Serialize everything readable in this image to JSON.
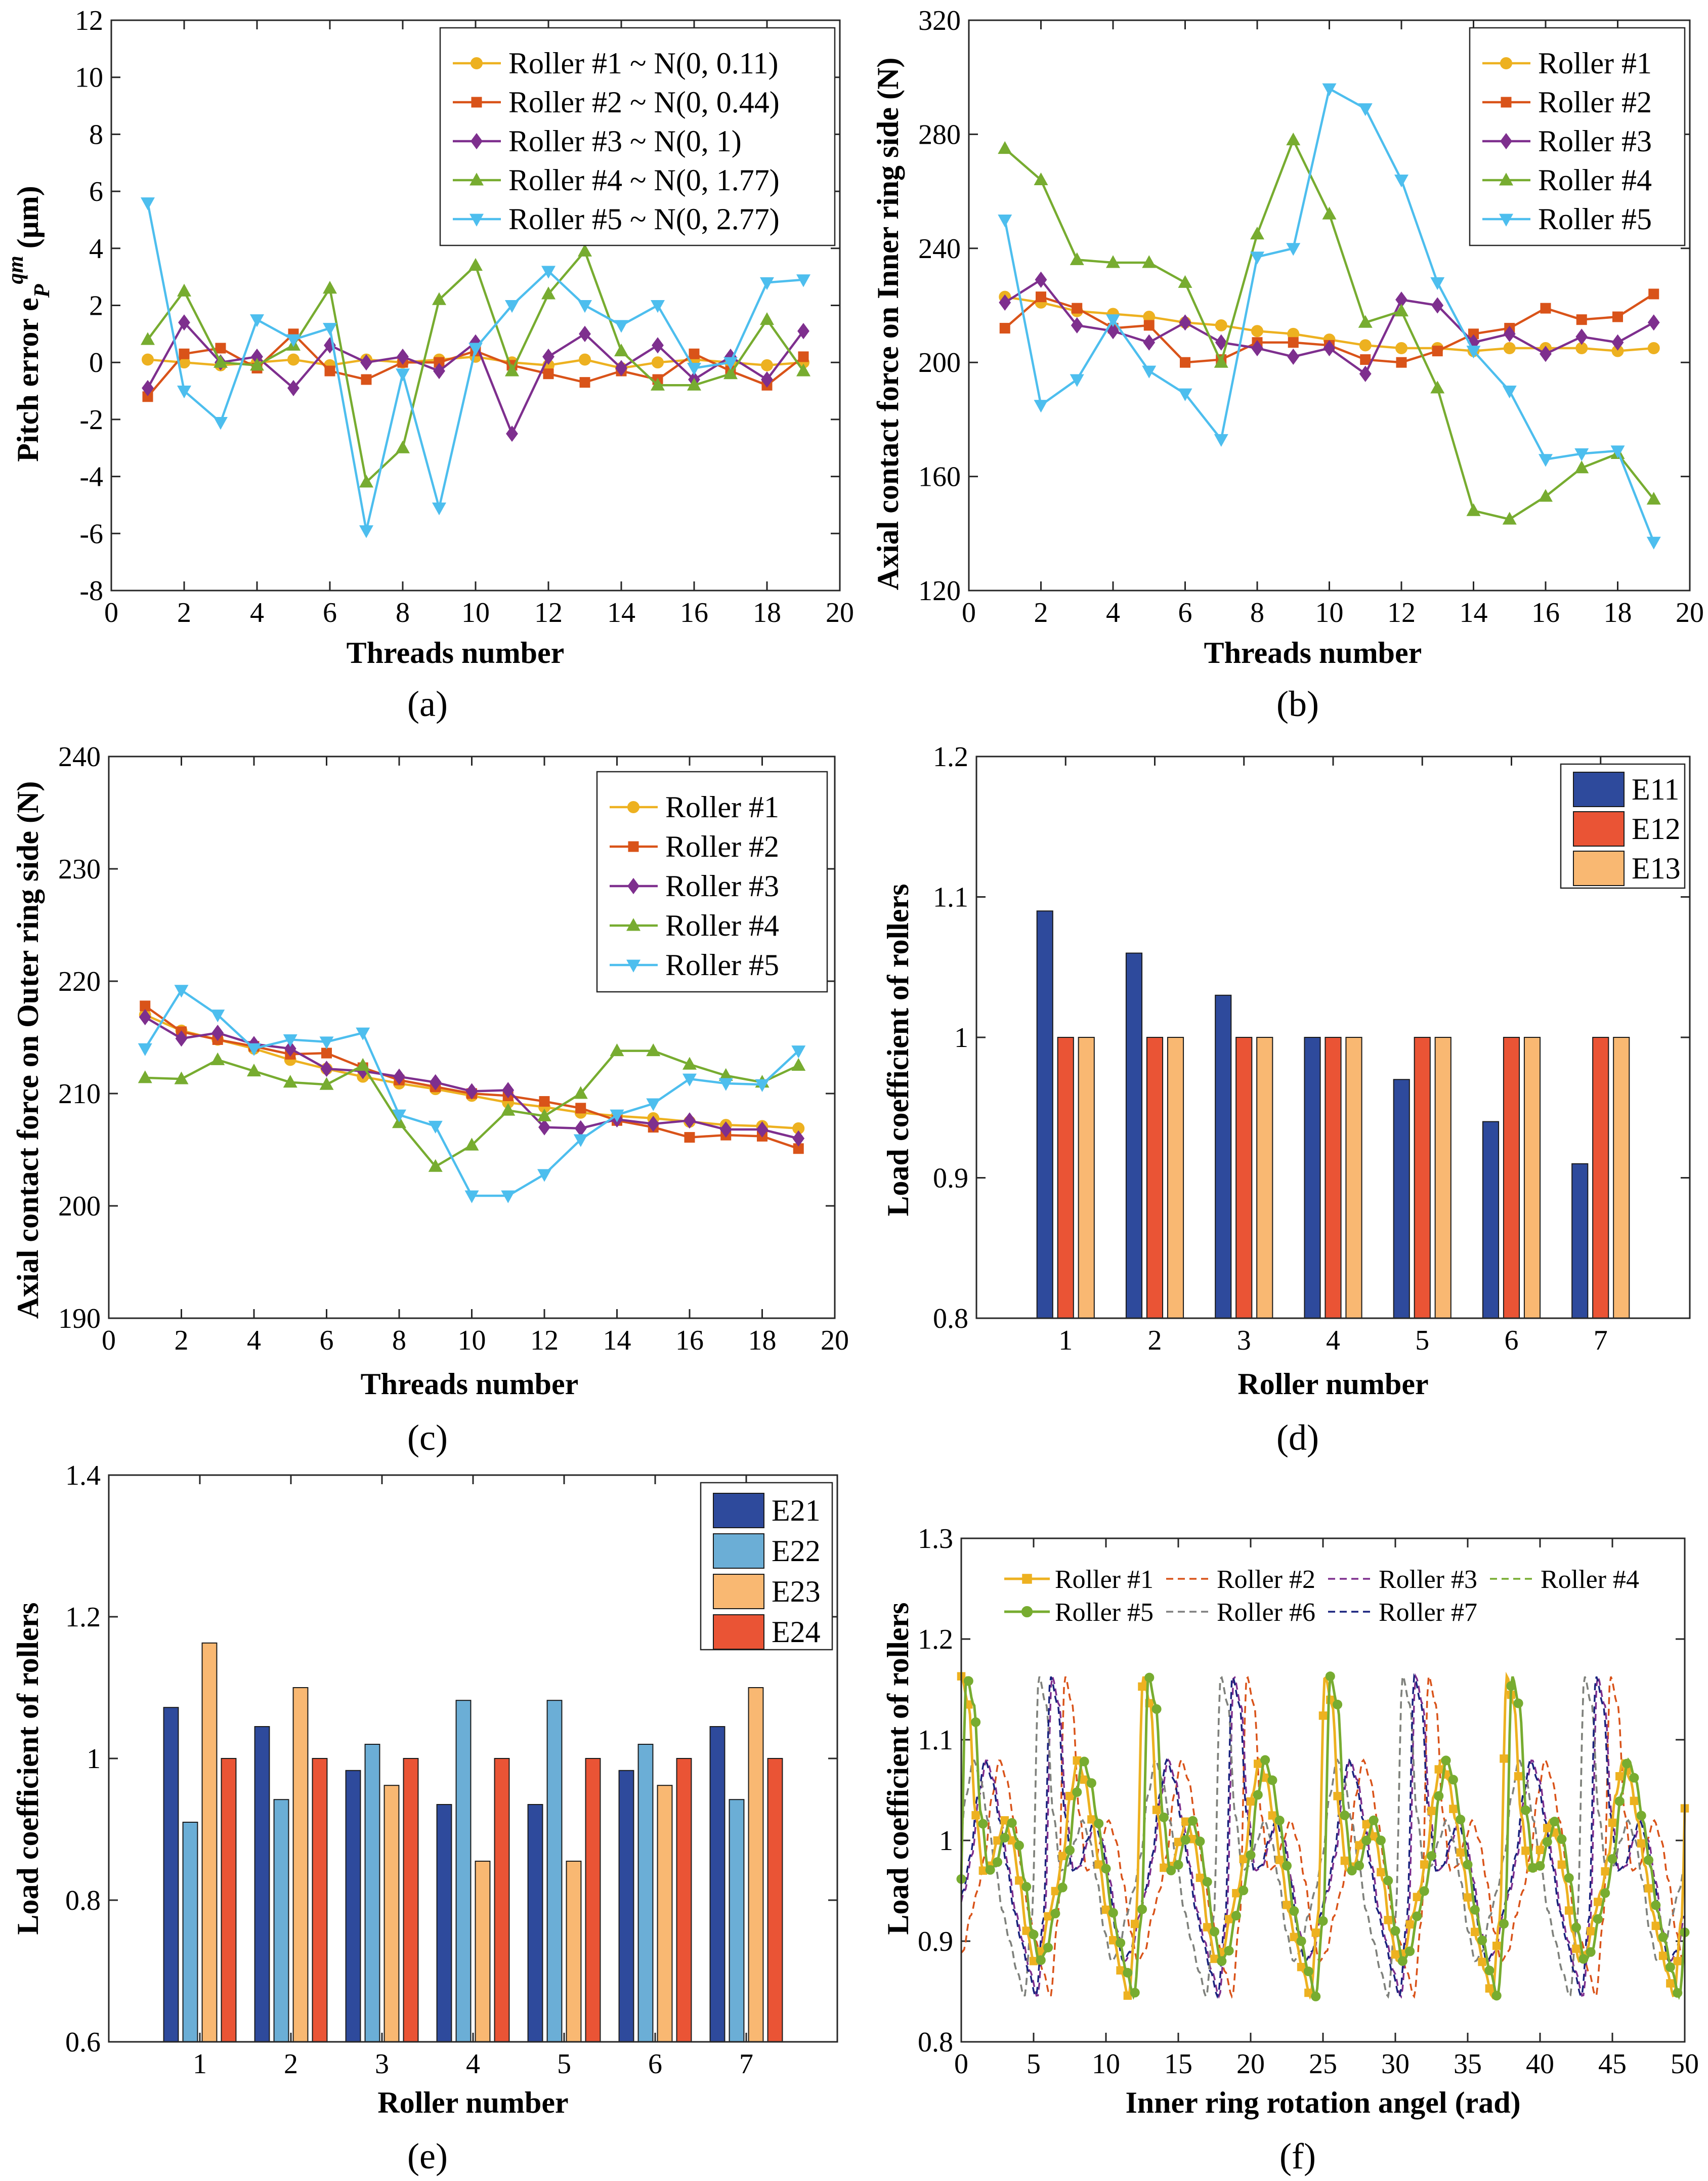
{
  "colors": {
    "r1": "#EDB120",
    "r2": "#D95319",
    "r3": "#7E2F8E",
    "r4": "#77AC30",
    "r5": "#4DBEEE",
    "r6": "#7F7F7F",
    "r7": "#1A237E",
    "E11": "#2E4A9C",
    "E12": "#EA5435",
    "E13": "#F9B872",
    "E21": "#2E4A9C",
    "E22": "#6BAED6",
    "E23": "#F9B872",
    "E24": "#EA5435"
  },
  "chart_data": [
    {
      "id": "a",
      "type": "line",
      "panel_label": "(a)",
      "xlabel": "Threads number",
      "ylabel": "Pitch error e_P^{qm} (μm)",
      "ylabel_parts": {
        "main": "Pitch error e",
        "sub": "P",
        "sup": "qm",
        "unit": "(μm)"
      },
      "xlim": [
        0,
        20
      ],
      "ylim": [
        -8,
        12
      ],
      "xticks": [
        0,
        2,
        4,
        6,
        8,
        10,
        12,
        14,
        16,
        18,
        20
      ],
      "yticks": [
        -8,
        -6,
        -4,
        -2,
        0,
        2,
        4,
        6,
        8,
        10,
        12
      ],
      "legend_position": "top-right",
      "x": [
        1,
        2,
        3,
        4,
        5,
        6,
        7,
        8,
        9,
        10,
        11,
        12,
        13,
        14,
        15,
        16,
        17,
        18,
        19
      ],
      "series": [
        {
          "name": "Roller #1 ~ N(0, 0.11)",
          "color_key": "r1",
          "marker": "circle",
          "values": [
            0.1,
            0.0,
            -0.1,
            0.0,
            0.1,
            -0.1,
            0.1,
            0.0,
            0.1,
            0.2,
            0.0,
            -0.1,
            0.1,
            -0.2,
            0.0,
            0.1,
            0.0,
            -0.1,
            0.0
          ]
        },
        {
          "name": "Roller #2 ~ N(0, 0.44)",
          "color_key": "r2",
          "marker": "square",
          "values": [
            -1.2,
            0.3,
            0.5,
            -0.2,
            1.0,
            -0.3,
            -0.6,
            0.0,
            0.0,
            0.4,
            -0.1,
            -0.4,
            -0.7,
            -0.3,
            -0.6,
            0.3,
            -0.3,
            -0.8,
            0.2
          ]
        },
        {
          "name": "Roller #3 ~ N(0, 1)",
          "color_key": "r3",
          "marker": "diamond",
          "values": [
            -0.9,
            1.4,
            0.0,
            0.2,
            -0.9,
            0.6,
            0.0,
            0.2,
            -0.3,
            0.7,
            -2.5,
            0.2,
            1.0,
            -0.2,
            0.6,
            -0.6,
            0.2,
            -0.6,
            1.1
          ]
        },
        {
          "name": "Roller #4 ~ N(0, 1.77)",
          "color_key": "r4",
          "marker": "triangle-up",
          "values": [
            0.8,
            2.5,
            0.0,
            -0.1,
            0.6,
            2.6,
            -4.2,
            -3.0,
            2.2,
            3.4,
            -0.3,
            2.4,
            3.9,
            0.4,
            -0.8,
            -0.8,
            -0.4,
            1.5,
            -0.3
          ]
        },
        {
          "name": "Roller #5 ~ N(0, 2.77)",
          "color_key": "r5",
          "marker": "triangle-down",
          "values": [
            5.6,
            -1.0,
            -2.1,
            1.5,
            0.8,
            1.2,
            -5.9,
            -0.4,
            -5.1,
            0.5,
            2.0,
            3.2,
            2.0,
            1.3,
            2.0,
            -0.2,
            0.0,
            2.8,
            2.9
          ]
        }
      ]
    },
    {
      "id": "b",
      "type": "line",
      "panel_label": "(b)",
      "xlabel": "Threads number",
      "ylabel": "Axial contact force on Inner ring side (N)",
      "xlim": [
        0,
        20
      ],
      "ylim": [
        120,
        320
      ],
      "xticks": [
        0,
        2,
        4,
        6,
        8,
        10,
        12,
        14,
        16,
        18,
        20
      ],
      "yticks": [
        120,
        160,
        200,
        240,
        280,
        320
      ],
      "legend_position": "top-right",
      "x": [
        1,
        2,
        3,
        4,
        5,
        6,
        7,
        8,
        9,
        10,
        11,
        12,
        13,
        14,
        15,
        16,
        17,
        18,
        19
      ],
      "series": [
        {
          "name": "Roller #1",
          "color_key": "r1",
          "marker": "circle",
          "values": [
            223,
            221,
            218,
            217,
            216,
            214,
            213,
            211,
            210,
            208,
            206,
            205,
            205,
            204,
            205,
            205,
            205,
            204,
            205
          ]
        },
        {
          "name": "Roller #2",
          "color_key": "r2",
          "marker": "square",
          "values": [
            212,
            223,
            219,
            212,
            213,
            200,
            201,
            207,
            207,
            206,
            201,
            200,
            204,
            210,
            212,
            219,
            215,
            216,
            224
          ]
        },
        {
          "name": "Roller #3",
          "color_key": "r3",
          "marker": "diamond",
          "values": [
            221,
            229,
            213,
            211,
            207,
            214,
            207,
            205,
            202,
            205,
            196,
            222,
            220,
            207,
            210,
            203,
            209,
            207,
            214
          ]
        },
        {
          "name": "Roller #4",
          "color_key": "r4",
          "marker": "triangle-up",
          "values": [
            275,
            264,
            236,
            235,
            235,
            228,
            200,
            245,
            278,
            252,
            214,
            218,
            191,
            148,
            145,
            153,
            163,
            168,
            152
          ]
        },
        {
          "name": "Roller #5",
          "color_key": "r5",
          "marker": "triangle-down",
          "values": [
            250,
            185,
            194,
            215,
            197,
            189,
            173,
            237,
            240,
            296,
            289,
            264,
            228,
            204,
            190,
            166,
            168,
            169,
            137
          ]
        }
      ]
    },
    {
      "id": "c",
      "type": "line",
      "panel_label": "(c)",
      "xlabel": "Threads number",
      "ylabel": "Axial contact force on Outer ring side (N)",
      "xlim": [
        0,
        20
      ],
      "ylim": [
        190,
        240
      ],
      "xticks": [
        0,
        2,
        4,
        6,
        8,
        10,
        12,
        14,
        16,
        18,
        20
      ],
      "yticks": [
        190,
        200,
        210,
        220,
        230,
        240
      ],
      "legend_position": "top-right",
      "x": [
        1,
        2,
        3,
        4,
        5,
        6,
        7,
        8,
        9,
        10,
        11,
        12,
        13,
        14,
        15,
        16,
        17,
        18,
        19
      ],
      "series": [
        {
          "name": "Roller #1",
          "color_key": "r1",
          "marker": "circle",
          "values": [
            217.0,
            215.6,
            214.8,
            214.0,
            213.0,
            212.2,
            211.5,
            210.9,
            210.4,
            209.8,
            209.2,
            208.8,
            208.3,
            208.0,
            207.8,
            207.5,
            207.2,
            207.1,
            206.9
          ]
        },
        {
          "name": "Roller #2",
          "color_key": "r2",
          "marker": "square",
          "values": [
            217.8,
            215.5,
            214.8,
            214.2,
            213.5,
            213.6,
            212.3,
            211.2,
            210.6,
            210.0,
            209.8,
            209.3,
            208.7,
            207.6,
            207.0,
            206.1,
            206.3,
            206.2,
            205.1
          ]
        },
        {
          "name": "Roller #3",
          "color_key": "r3",
          "marker": "diamond",
          "values": [
            216.8,
            214.9,
            215.4,
            214.4,
            214.0,
            212.2,
            212.0,
            211.5,
            211.0,
            210.2,
            210.3,
            207.0,
            206.9,
            207.7,
            207.3,
            207.6,
            206.8,
            206.8,
            206.0
          ]
        },
        {
          "name": "Roller #4",
          "color_key": "r4",
          "marker": "triangle-up",
          "values": [
            211.4,
            211.3,
            213.0,
            212.0,
            211.0,
            210.8,
            212.5,
            207.4,
            203.5,
            205.4,
            208.5,
            208.0,
            210.0,
            213.8,
            213.8,
            212.6,
            211.6,
            211.0,
            212.5
          ]
        },
        {
          "name": "Roller #5",
          "color_key": "r5",
          "marker": "triangle-down",
          "values": [
            214.0,
            219.2,
            217.0,
            214.0,
            214.8,
            214.6,
            215.4,
            208.1,
            207.1,
            200.9,
            200.9,
            202.8,
            205.9,
            208.1,
            209.1,
            211.3,
            210.9,
            210.8,
            213.8
          ]
        }
      ]
    },
    {
      "id": "d",
      "type": "bar",
      "panel_label": "(d)",
      "xlabel": "Roller number",
      "ylabel": "Load coefficient of rollers",
      "categories": [
        "1",
        "2",
        "3",
        "4",
        "5",
        "6",
        "7"
      ],
      "ylim": [
        0.8,
        1.2
      ],
      "yticks": [
        0.8,
        0.9,
        1,
        1.1,
        1.2
      ],
      "legend_position": "top-right",
      "series": [
        {
          "name": "E11",
          "color_key": "E11",
          "values": [
            1.09,
            1.06,
            1.03,
            1.0,
            0.97,
            0.94,
            0.91
          ]
        },
        {
          "name": "E12",
          "color_key": "E12",
          "values": [
            1,
            1,
            1,
            1,
            1,
            1,
            1
          ]
        },
        {
          "name": "E13",
          "color_key": "E13",
          "values": [
            1,
            1,
            1,
            1,
            1,
            1,
            1
          ]
        }
      ]
    },
    {
      "id": "e",
      "type": "bar",
      "panel_label": "(e)",
      "xlabel": "Roller number",
      "ylabel": "Load coefficient of rollers",
      "categories": [
        "1",
        "2",
        "3",
        "4",
        "5",
        "6",
        "7"
      ],
      "ylim": [
        0.6,
        1.4
      ],
      "yticks": [
        0.6,
        0.8,
        1,
        1.2,
        1.4
      ],
      "legend_position": "top-right",
      "series": [
        {
          "name": "E21",
          "color_key": "E21",
          "values": [
            1.072,
            1.045,
            0.983,
            0.935,
            0.935,
            0.983,
            1.045
          ]
        },
        {
          "name": "E22",
          "color_key": "E22",
          "values": [
            0.91,
            0.942,
            1.02,
            1.082,
            1.082,
            1.02,
            0.942
          ]
        },
        {
          "name": "E23",
          "color_key": "E23",
          "values": [
            1.163,
            1.1,
            0.962,
            0.855,
            0.855,
            0.962,
            1.1
          ]
        },
        {
          "name": "E24",
          "color_key": "E24",
          "values": [
            1,
            1,
            1,
            1,
            1,
            1,
            1
          ]
        }
      ]
    },
    {
      "id": "f",
      "type": "line",
      "panel_label": "(f)",
      "xlabel": "Inner ring rotation angel (rad)",
      "ylabel": "Load coefficient of rollers",
      "xlim": [
        0,
        50
      ],
      "ylim": [
        0.8,
        1.3
      ],
      "xticks": [
        0,
        5,
        10,
        15,
        20,
        25,
        30,
        35,
        40,
        45,
        50
      ],
      "yticks": [
        0.8,
        0.9,
        1,
        1.1,
        1.2,
        1.3
      ],
      "legend_position": "top",
      "period_rad": 12.566,
      "series": [
        {
          "name": "Roller #1",
          "color_key": "r1",
          "style": "solid",
          "marker": "square",
          "phase_rad": 0.0
        },
        {
          "name": "Roller #2",
          "color_key": "r2",
          "style": "dashed",
          "phase_rad": 5.4
        },
        {
          "name": "Roller #3",
          "color_key": "r3",
          "style": "dashed",
          "phase_rad": 6.3
        },
        {
          "name": "Roller #4",
          "color_key": "r4",
          "style": "dashed",
          "phase_rad": 7.2
        },
        {
          "name": "Roller #5",
          "color_key": "r4",
          "style": "solid",
          "marker": "circle",
          "phase_rad": 12.2
        },
        {
          "name": "Roller #6",
          "color_key": "r6",
          "style": "dashed",
          "phase_rad": 7.2
        },
        {
          "name": "Roller #7",
          "color_key": "r7",
          "style": "dashed",
          "phase_rad": 6.4
        }
      ],
      "wave_shape": {
        "t": [
          0.0,
          0.04,
          0.08,
          0.12,
          0.16,
          0.2,
          0.24,
          0.28,
          0.32,
          0.36,
          0.4,
          0.44,
          0.48,
          0.52,
          0.56,
          0.6,
          0.64,
          0.68,
          0.72,
          0.76,
          0.8,
          0.84,
          0.88,
          0.92,
          0.96,
          1.0
        ],
        "v": [
          1.163,
          1.135,
          1.025,
          0.97,
          0.975,
          1.0,
          1.02,
          1.0,
          0.96,
          0.91,
          0.88,
          0.89,
          0.925,
          0.95,
          0.985,
          1.045,
          1.08,
          1.06,
          1.02,
          0.975,
          0.93,
          0.9,
          0.87,
          0.845,
          0.92,
          1.163
        ]
      }
    }
  ]
}
